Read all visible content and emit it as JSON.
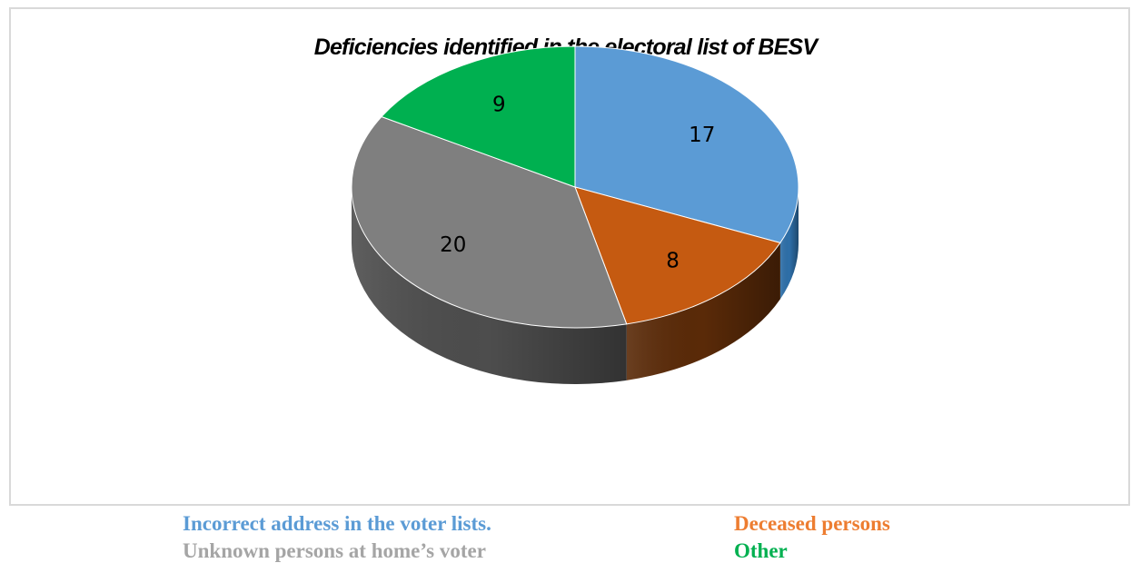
{
  "chart_data": {
    "type": "pie",
    "title": "Deficiencies identified in the electoral list of BESV",
    "series": [
      {
        "name": "",
        "categories": [
          "Incorrect address in the voter lists.",
          "Deceased persons",
          "Unknown persons at home’s voter",
          "Other"
        ],
        "values": [
          17,
          8,
          20,
          9
        ]
      }
    ],
    "legend": {
      "placement": "bottom",
      "items": [
        {
          "label": "Incorrect address in the voter lists.",
          "color": "#5b9bd5"
        },
        {
          "label": "Deceased persons",
          "color": "#ed7d31"
        },
        {
          "label": "Unknown persons at home’s voter",
          "color": "#a5a5a5"
        },
        {
          "label": "Other",
          "color": "#00b050"
        }
      ]
    },
    "slice_colors": {
      "top": [
        "#5b9bd5",
        "#c55a11",
        "#7f7f7f",
        "#00b050"
      ],
      "side": [
        "#2e6fa8",
        "#5a2a08",
        "#4d4d4d",
        "#006b30"
      ]
    },
    "style": "3d-pie"
  }
}
